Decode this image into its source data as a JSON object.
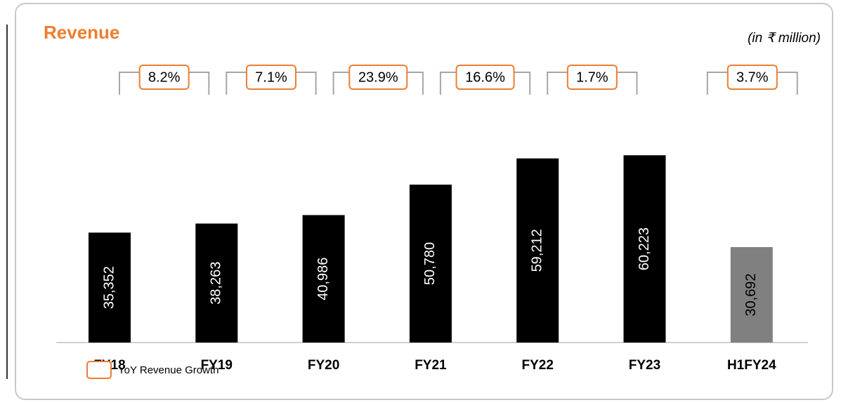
{
  "chart_data": {
    "type": "bar",
    "title": "Revenue",
    "subtitle": "(in ₹ million)",
    "categories": [
      "FY18",
      "FY19",
      "FY20",
      "FY21",
      "FY22",
      "FY23",
      "H1FY24"
    ],
    "values": [
      35352,
      38263,
      40986,
      50780,
      59212,
      60223,
      30692
    ],
    "value_labels": [
      "35,352",
      "38,263",
      "40,986",
      "50,780",
      "59,212",
      "60,223",
      "30,692"
    ],
    "colors": [
      "#000000",
      "#000000",
      "#000000",
      "#000000",
      "#000000",
      "#000000",
      "#808080"
    ],
    "growth": {
      "name": "YoY Revenue Growth",
      "color": "#ed7d31",
      "values": [
        8.2,
        7.1,
        23.9,
        16.6,
        1.7,
        3.7
      ],
      "value_labels": [
        "8.2%",
        "7.1%",
        "23.9%",
        "16.6%",
        "1.7%",
        "3.7%"
      ]
    }
  }
}
